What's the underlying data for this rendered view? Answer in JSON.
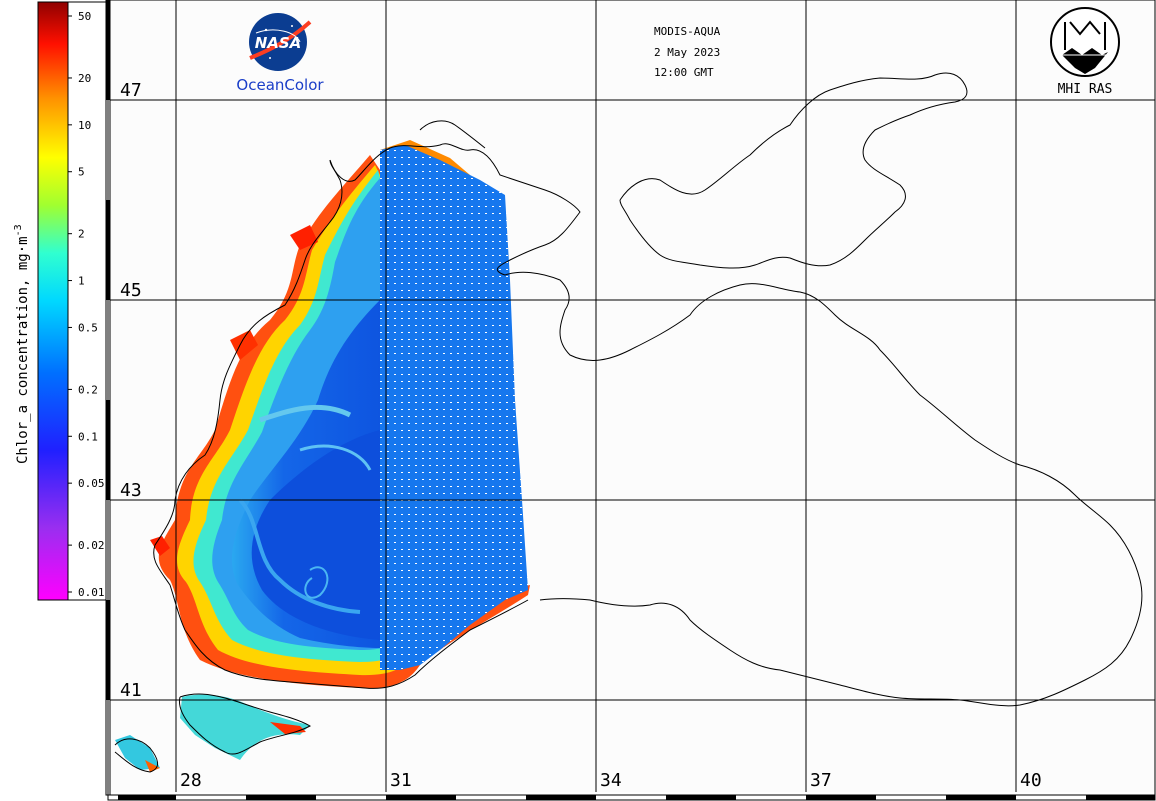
{
  "header": {
    "sensor": "MODIS-AQUA",
    "date": "2 May 2023",
    "time": "12:00 GMT"
  },
  "logos": {
    "nasa": {
      "wordmark": "NASA",
      "caption": "OceanColor",
      "icon": "nasa-meatball-icon"
    },
    "mhi": {
      "caption": "MHI RAS",
      "icon": "mhi-ras-emblem-icon"
    }
  },
  "colorbar": {
    "title": "Chlor_a concentration, mg·m",
    "exponent": "-3",
    "scale": "log",
    "range": [
      0.01,
      50
    ],
    "ticks": [
      "50",
      "20",
      "10",
      "5",
      "2",
      "1",
      "0.5",
      "0.2",
      "0.1",
      "0.05",
      "0.02",
      "0.01"
    ],
    "colors": [
      "#ff00ff",
      "#8a2be2",
      "#0000ff",
      "#0060ff",
      "#00c0ff",
      "#00ffff",
      "#7fff00",
      "#ffff00",
      "#ffa500",
      "#ff0000",
      "#8b0000"
    ]
  },
  "grid": {
    "latitudes": [
      "47",
      "45",
      "43",
      "41"
    ],
    "longitudes": [
      "28",
      "31",
      "34",
      "37",
      "40"
    ]
  },
  "layers": {
    "coastline_color": "#000000",
    "grid_color": "#000000",
    "land_color": "#ffffff"
  }
}
